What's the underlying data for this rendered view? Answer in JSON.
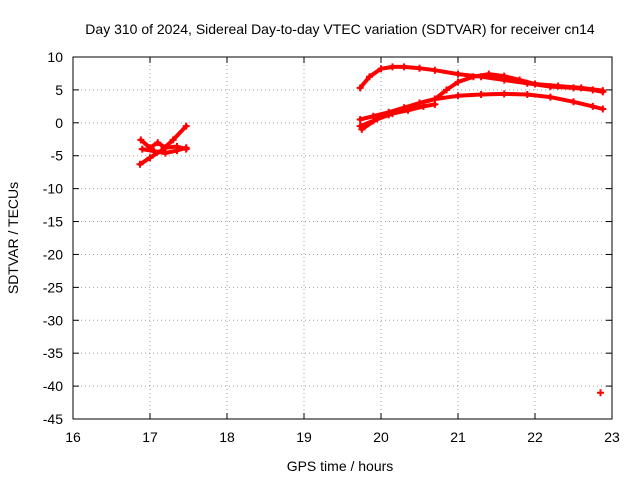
{
  "chart_data": {
    "type": "scatter",
    "title": "Day 310 of 2024, Sidereal Day-to-day VTEC variation (SDTVAR) for receiver cn14",
    "xlabel": "GPS time / hours",
    "ylabel": "SDTVAR / TECUs",
    "xlim": [
      16,
      23
    ],
    "ylim": [
      -45,
      10
    ],
    "x_ticks": [
      16,
      17,
      18,
      19,
      20,
      21,
      22,
      23
    ],
    "y_ticks": [
      10,
      5,
      0,
      -5,
      -10,
      -15,
      -20,
      -25,
      -30,
      -35,
      -40,
      -45
    ],
    "grid": true,
    "legend": "none",
    "color": "#ff0000",
    "series": [
      {
        "x": [
          16.87,
          17.0,
          17.15,
          17.3,
          17.47
        ],
        "y": [
          -6.3,
          -5.3,
          -4.2,
          -2.6,
          -0.5
        ]
      },
      {
        "x": [
          16.88,
          17.0,
          17.1,
          17.2,
          17.35,
          17.47
        ],
        "y": [
          -2.6,
          -3.8,
          -3.0,
          -3.8,
          -3.6,
          -4.0
        ]
      },
      {
        "x": [
          16.9,
          17.05,
          17.2,
          17.35,
          17.47
        ],
        "y": [
          -4.0,
          -4.3,
          -4.6,
          -4.2,
          -3.8
        ]
      },
      {
        "x": [
          19.73,
          19.85,
          20.0,
          20.15,
          20.3,
          20.5,
          20.7,
          21.0,
          21.3,
          21.6,
          21.9,
          22.2,
          22.5,
          22.75,
          22.88
        ],
        "y": [
          5.3,
          7.0,
          8.2,
          8.5,
          8.5,
          8.3,
          8.0,
          7.4,
          7.0,
          6.5,
          6.0,
          5.5,
          5.3,
          5.0,
          4.7
        ]
      },
      {
        "x": [
          19.73,
          19.9,
          20.1,
          20.3,
          20.5,
          20.7,
          21.0,
          21.3,
          21.6,
          21.9,
          22.2,
          22.5,
          22.75,
          22.88
        ],
        "y": [
          0.5,
          1.0,
          1.6,
          2.3,
          3.0,
          3.6,
          4.1,
          4.3,
          4.4,
          4.3,
          3.9,
          3.2,
          2.5,
          2.1
        ]
      },
      {
        "x": [
          19.73,
          19.9,
          20.1,
          20.3,
          20.5,
          20.7,
          20.85,
          21.0,
          21.2,
          21.4,
          21.6,
          21.8,
          22.0,
          22.3,
          22.6,
          22.88
        ],
        "y": [
          -0.5,
          0.3,
          1.2,
          2.2,
          3.0,
          3.6,
          5.0,
          6.2,
          7.0,
          7.4,
          7.1,
          6.5,
          5.9,
          5.6,
          5.3,
          4.9
        ]
      },
      {
        "x": [
          19.75,
          19.95,
          20.15,
          20.35,
          20.55,
          20.7
        ],
        "y": [
          -1.0,
          0.6,
          1.4,
          1.9,
          2.5,
          2.8
        ]
      },
      {
        "x": [
          22.85
        ],
        "y": [
          -41.0
        ]
      }
    ]
  }
}
